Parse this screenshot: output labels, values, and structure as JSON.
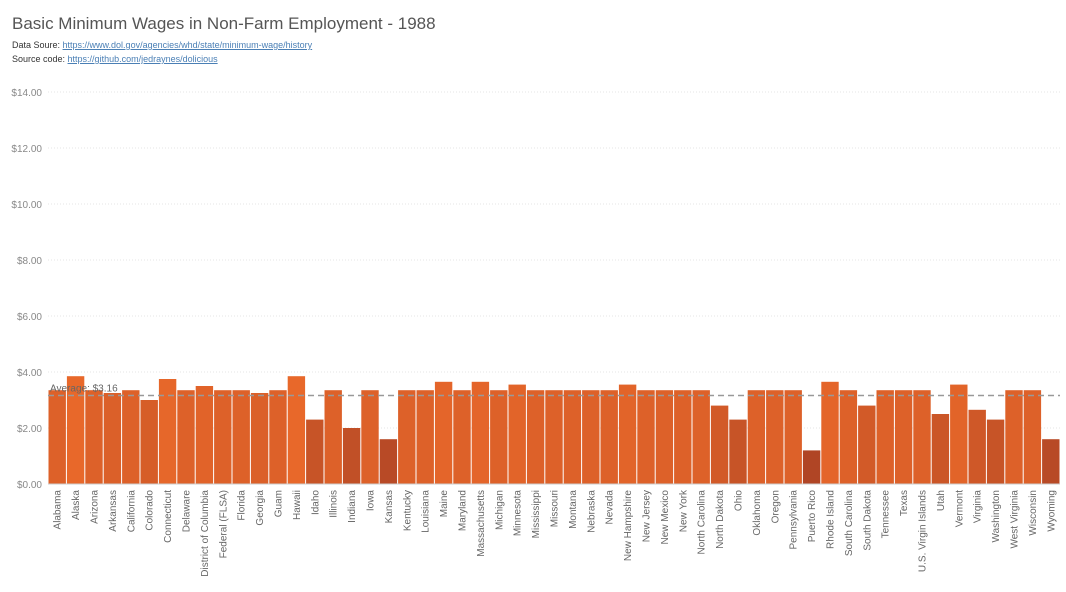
{
  "header": {
    "title": "Basic Minimum Wages in Non-Farm Employment - 1988",
    "source_prefix": "Data Soure: ",
    "source_url": "https://www.dol.gov/agencies/whd/state/minimum-wage/history",
    "code_prefix": "Source code: ",
    "code_url": "https://github.com/jedraynes/dolicious"
  },
  "chart_data": {
    "type": "bar",
    "title": "Basic Minimum Wages in Non-Farm Employment - 1988",
    "xlabel": "",
    "ylabel": "",
    "ylim": [
      0,
      14
    ],
    "yticks": [
      "$0.00",
      "$2.00",
      "$4.00",
      "$6.00",
      "$8.00",
      "$10.00",
      "$12.00",
      "$14.00"
    ],
    "grid": true,
    "average": 3.16,
    "average_label": "Average: $3.16",
    "categories": [
      "Alabama",
      "Alaska",
      "Arizona",
      "Arkansas",
      "California",
      "Colorado",
      "Connecticut",
      "Delaware",
      "District of Columbia",
      "Federal (FLSA)",
      "Florida",
      "Georgia",
      "Guam",
      "Hawaii",
      "Idaho",
      "Illinois",
      "Indiana",
      "Iowa",
      "Kansas",
      "Kentucky",
      "Louisiana",
      "Maine",
      "Maryland",
      "Massachusetts",
      "Michigan",
      "Minnesota",
      "Mississippi",
      "Missouri",
      "Montana",
      "Nebraska",
      "Nevada",
      "New Hampshire",
      "New Jersey",
      "New Mexico",
      "New York",
      "North Carolina",
      "North Dakota",
      "Ohio",
      "Oklahoma",
      "Oregon",
      "Pennsylvania",
      "Puerto Rico",
      "Rhode Island",
      "South Carolina",
      "South Dakota",
      "Tennessee",
      "Texas",
      "U.S. Virgin Islands",
      "Utah",
      "Vermont",
      "Virginia",
      "Washington",
      "West Virginia",
      "Wisconsin",
      "Wyoming"
    ],
    "values": [
      3.35,
      3.85,
      3.35,
      3.25,
      3.35,
      3.0,
      3.75,
      3.35,
      3.5,
      3.35,
      3.35,
      3.25,
      3.35,
      3.85,
      2.3,
      3.35,
      2.0,
      3.35,
      1.6,
      3.35,
      3.35,
      3.65,
      3.35,
      3.65,
      3.35,
      3.55,
      3.35,
      3.35,
      3.35,
      3.35,
      3.35,
      3.55,
      3.35,
      3.35,
      3.35,
      3.35,
      2.8,
      2.3,
      3.35,
      3.35,
      3.35,
      1.2,
      3.65,
      3.35,
      2.8,
      3.35,
      3.35,
      3.35,
      2.5,
      3.55,
      2.65,
      2.3,
      3.35,
      3.35,
      1.6
    ],
    "colors": {
      "low": "#b04525",
      "high": "#e8682a",
      "average_line": "#999999",
      "grid": "#e6e6e6"
    }
  }
}
